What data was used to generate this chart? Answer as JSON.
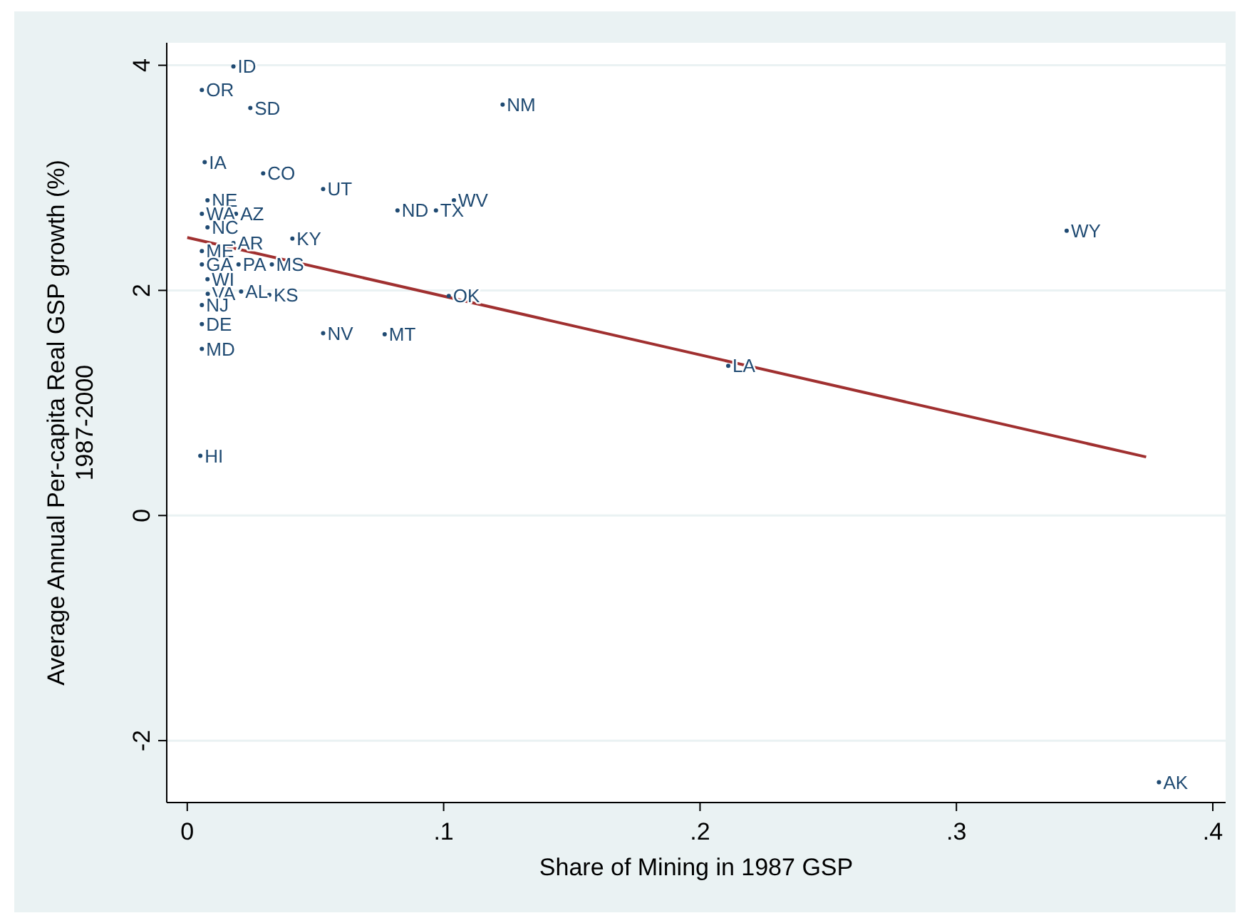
{
  "chart_data": {
    "type": "scatter",
    "xlabel": "Share of Mining in 1987 GSP",
    "ylabel": "Average Annual Per-capita Real GSP growth (%)\n1987-2000",
    "xlim": [
      -0.008,
      0.405
    ],
    "ylim": [
      -2.55,
      4.2
    ],
    "xticks": [
      {
        "value": 0,
        "label": "0"
      },
      {
        "value": 0.1,
        "label": ".1"
      },
      {
        "value": 0.2,
        "label": ".2"
      },
      {
        "value": 0.3,
        "label": ".3"
      },
      {
        "value": 0.4,
        "label": ".4"
      }
    ],
    "yticks": [
      -2,
      0,
      2,
      4
    ],
    "grid": "y",
    "marker": "circle",
    "series": [
      {
        "color": "#1f4a72",
        "x": [
          0.018,
          0.0057,
          0.0246,
          0.123,
          0.0068,
          0.0296,
          0.053,
          0.082,
          0.097,
          0.104,
          0.343,
          0.0079,
          0.0057,
          0.019,
          0.0079,
          0.018,
          0.0057,
          0.041,
          0.033,
          0.0057,
          0.02,
          0.0079,
          0.008,
          0.021,
          0.032,
          0.102,
          0.0057,
          0.0057,
          0.0057,
          0.053,
          0.077,
          0.211,
          0.0051,
          0.379
        ],
        "values": [
          3.99,
          3.78,
          3.62,
          3.65,
          3.14,
          3.04,
          2.9,
          2.71,
          2.71,
          2.8,
          2.53,
          2.8,
          2.68,
          2.68,
          2.56,
          2.42,
          2.35,
          2.46,
          2.23,
          2.23,
          2.23,
          2.1,
          1.97,
          1.99,
          1.96,
          1.95,
          1.87,
          1.7,
          1.48,
          1.62,
          1.61,
          1.33,
          0.53,
          -2.37
        ],
        "value_labels": [
          "ID",
          "OR",
          "SD",
          "NM",
          "IA",
          "CO",
          "UT",
          "ND",
          "TX",
          "WV",
          "WY",
          "NE",
          "WA",
          "AZ",
          "NC",
          "AR",
          "ME",
          "KY",
          "MS",
          "GA",
          "PA",
          "WI",
          "VA",
          "AL",
          "KS",
          "OK",
          "NJ",
          "DE",
          "MD",
          "NV",
          "MT",
          "LA",
          "HI",
          "AK"
        ]
      },
      {
        "type": "line",
        "marker": "none",
        "x": [
          0,
          0.374
        ],
        "values": [
          2.47,
          0.52
        ],
        "color": "#a03030"
      }
    ]
  }
}
